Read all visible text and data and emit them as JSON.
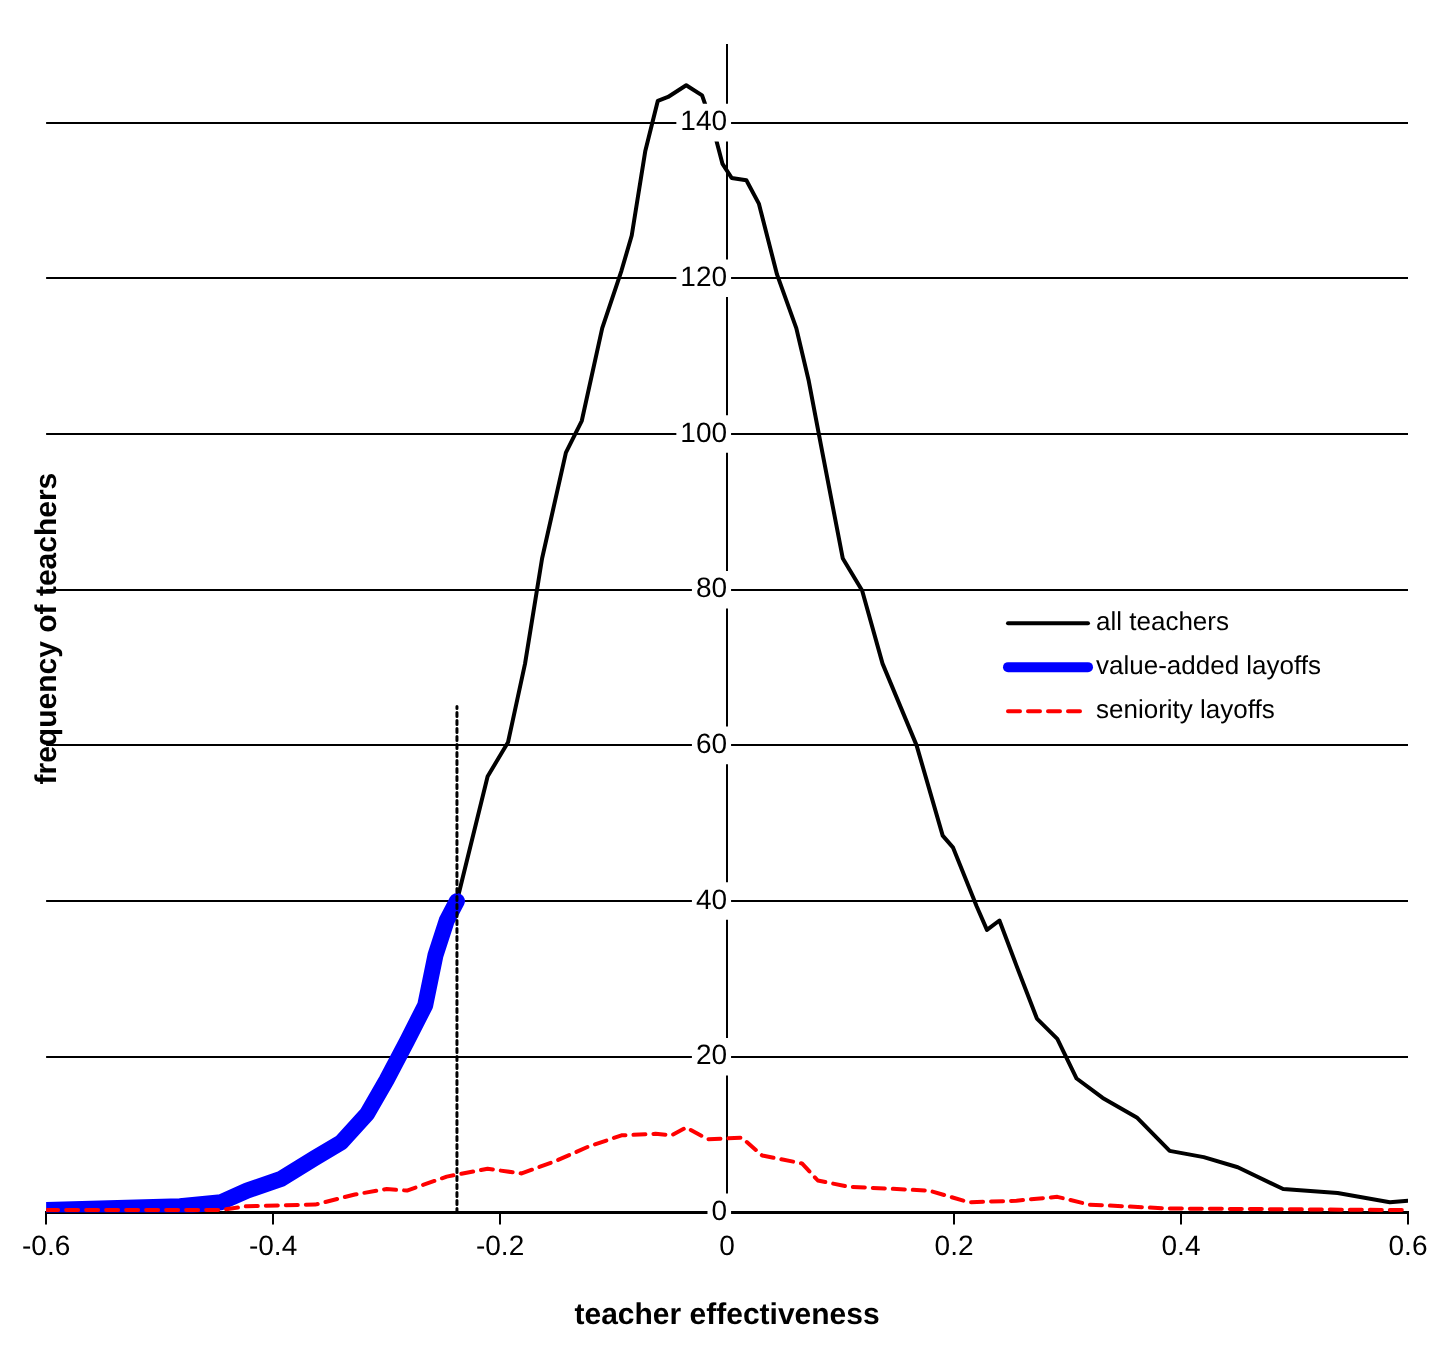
{
  "chart_data": {
    "type": "line",
    "xlabel": "teacher effectiveness",
    "ylabel": "frequency of teachers",
    "xlim": [
      -0.6,
      0.6
    ],
    "xticks": [
      -0.6,
      -0.4,
      -0.2,
      0,
      0.2,
      0.4,
      0.6
    ],
    "ylim": [
      0,
      150
    ],
    "yticks": [
      0,
      20,
      40,
      60,
      80,
      100,
      120,
      140
    ],
    "grid": "y",
    "legend": "right",
    "marker": "none",
    "series": [
      {
        "name": "all teachers",
        "color": "#000000",
        "line_style": "solid",
        "x": [
          -0.238,
          -0.211,
          -0.193,
          -0.178,
          -0.163,
          -0.142,
          -0.128,
          -0.11,
          -0.093,
          -0.084,
          -0.072,
          -0.061,
          -0.052,
          -0.036,
          -0.022,
          -0.013,
          -0.004,
          0.004,
          0.017,
          0.028,
          0.044,
          0.061,
          0.072,
          0.084,
          0.102,
          0.119,
          0.137,
          0.167,
          0.19,
          0.199,
          0.22,
          0.229,
          0.24,
          0.255,
          0.273,
          0.291,
          0.308,
          0.331,
          0.361,
          0.39,
          0.42,
          0.45,
          0.49,
          0.538,
          0.584,
          0.6
        ],
        "values": [
          40,
          56,
          60.4,
          70.5,
          84,
          97.6,
          101.7,
          113.6,
          121,
          125.5,
          136.4,
          142.8,
          143.3,
          144.8,
          143.5,
          139.7,
          134.7,
          132.9,
          132.6,
          129.6,
          120.5,
          113.6,
          106.8,
          97.6,
          84,
          79.9,
          70.5,
          60,
          48.4,
          46.9,
          39.3,
          36.3,
          37.5,
          31.7,
          24.9,
          22.3,
          17.2,
          14.7,
          12.2,
          7.9,
          7.1,
          5.8,
          3,
          2.5,
          1.3,
          1.5
        ]
      },
      {
        "name": "value-added layoffs",
        "color": "#0000ff",
        "line_style": "solid",
        "x": [
          -0.6,
          -0.482,
          -0.446,
          -0.423,
          -0.393,
          -0.363,
          -0.34,
          -0.317,
          -0.3,
          -0.282,
          -0.266,
          -0.257,
          -0.247,
          -0.238
        ],
        "values": [
          0.3,
          0.8,
          1.3,
          2.8,
          4.3,
          7,
          9,
          12.7,
          17,
          22,
          26.6,
          33,
          37.5,
          40
        ]
      },
      {
        "name": "seniority layoffs",
        "color": "#ff0000",
        "line_style": "dashed",
        "x": [
          -0.6,
          -0.446,
          -0.423,
          -0.363,
          -0.328,
          -0.3,
          -0.282,
          -0.247,
          -0.211,
          -0.181,
          -0.151,
          -0.123,
          -0.093,
          -0.063,
          -0.049,
          -0.036,
          -0.017,
          0.013,
          0.031,
          0.066,
          0.08,
          0.107,
          0.178,
          0.213,
          0.255,
          0.291,
          0.319,
          0.39,
          0.6
        ],
        "values": [
          0.3,
          0.3,
          0.8,
          1,
          2.3,
          3,
          2.8,
          4.6,
          5.6,
          5,
          6.6,
          8.4,
          9.9,
          10.1,
          9.9,
          10.9,
          9.4,
          9.6,
          7.3,
          6.3,
          4.1,
          3.3,
          2.8,
          1.3,
          1.5,
          2,
          1,
          0.5,
          0.3
        ]
      },
      {
        "color": "#000000",
        "line_style": "dotted",
        "x": [
          -0.238,
          -0.238
        ],
        "values": [
          0,
          65
        ]
      }
    ]
  }
}
